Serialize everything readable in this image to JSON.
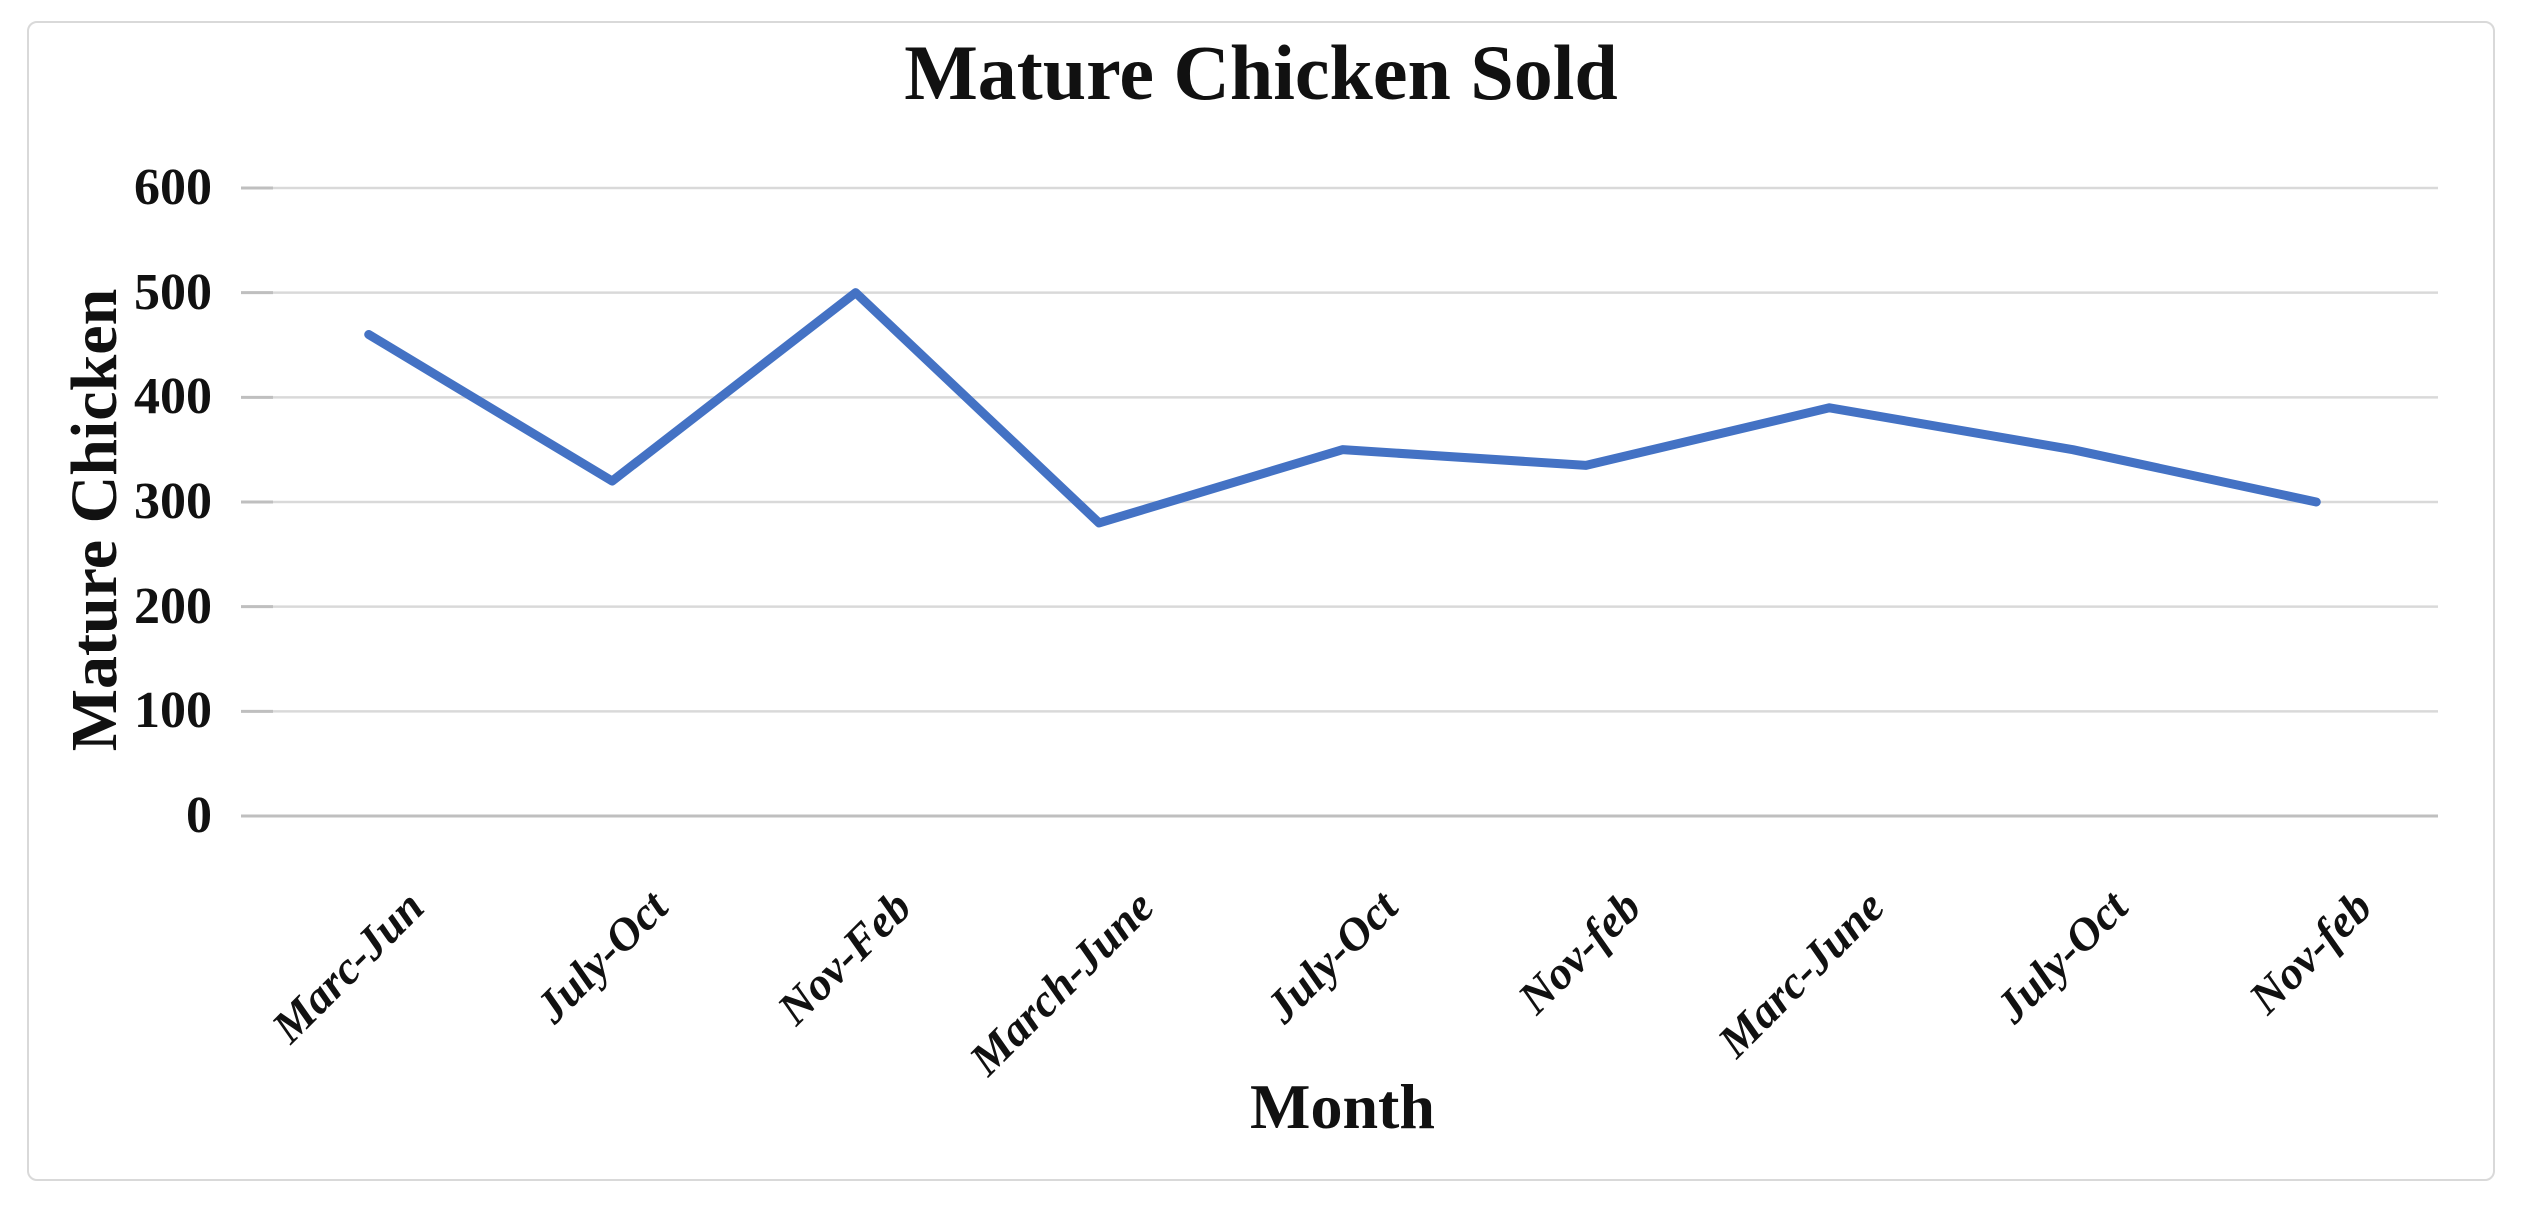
{
  "chart": {
    "title": "Mature Chicken Sold",
    "y_axis_title": "Mature Chicken",
    "x_axis_title": "Month"
  },
  "chart_data": {
    "type": "line",
    "title": "Mature Chicken Sold",
    "xlabel": "Month",
    "ylabel": "Mature Chicken",
    "categories": [
      "Marc-Jun",
      "July-Oct",
      "Nov-Feb",
      "March-June",
      "July-Oct",
      "Nov-feb",
      "Marc-June",
      "July-Oct",
      "Nov-feb"
    ],
    "series": [
      {
        "name": "Mature Chicken Sold",
        "values": [
          460,
          320,
          500,
          280,
          350,
          335,
          390,
          350,
          300
        ]
      }
    ],
    "y_ticks": [
      0,
      100,
      200,
      300,
      400,
      500,
      600
    ],
    "ylim": [
      0,
      600
    ],
    "grid": true,
    "legend": false,
    "x_label_rotation_deg": 45,
    "line_color": "#4472C4",
    "gridline_color": "#D9D9D9",
    "tick_mark_color": "#BFBFBF",
    "axis_line_color": "#BFBFBF",
    "border_color": "#D9D9D9",
    "text_color": "#111111"
  }
}
